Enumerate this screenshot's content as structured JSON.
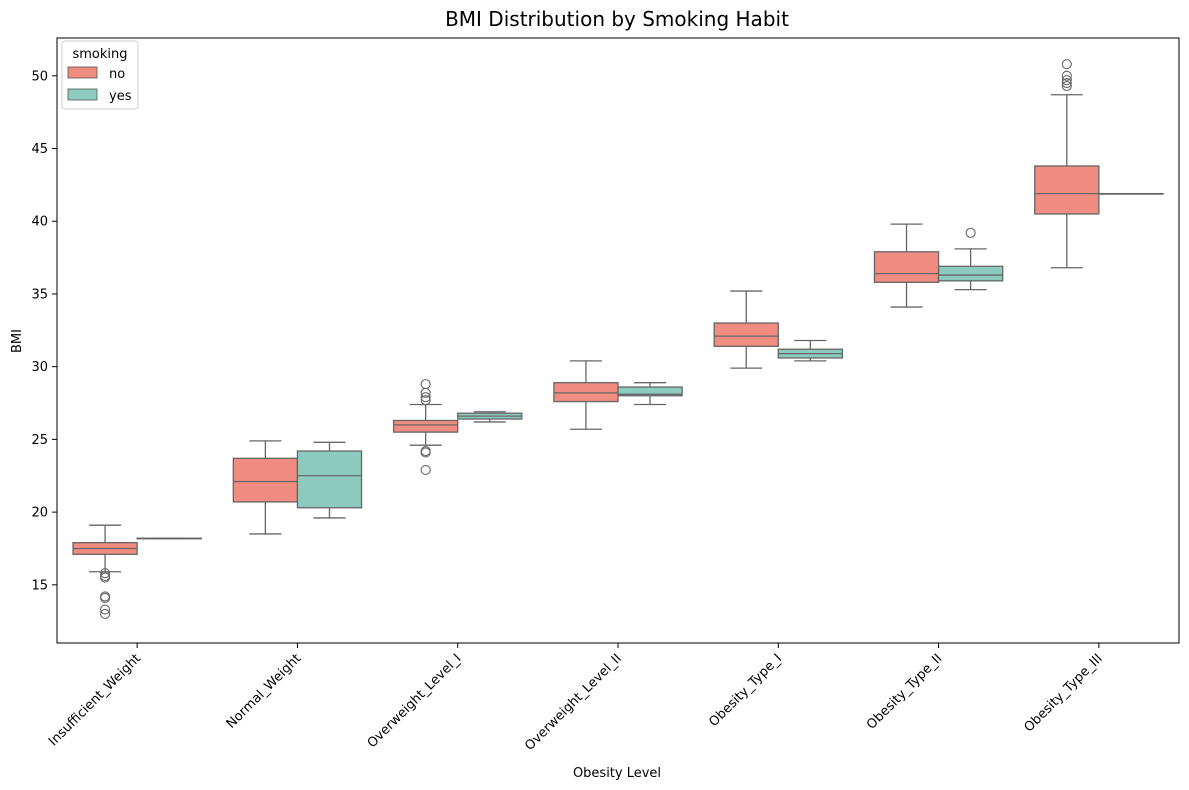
{
  "chart_data": {
    "type": "boxplot",
    "title": "BMI Distribution by Smoking Habit",
    "xlabel": "Obesity Level",
    "ylabel": "BMI",
    "ylim": [
      11,
      52.6
    ],
    "yticks": [
      15,
      20,
      25,
      30,
      35,
      40,
      45,
      50
    ],
    "categories": [
      "Insufficient_Weight",
      "Normal_Weight",
      "Overweight_Level_I",
      "Overweight_Level_II",
      "Obesity_Type_I",
      "Obesity_Type_II",
      "Obesity_Type_III"
    ],
    "legend": {
      "title": "smoking",
      "position": "top-left"
    },
    "series": [
      {
        "name": "no",
        "color": "#f08c80",
        "boxes": [
          {
            "whislo": 15.9,
            "q1": 17.1,
            "med": 17.5,
            "q3": 17.9,
            "whishi": 19.1,
            "fliers": [
              15.8,
              15.6,
              15.5,
              14.2,
              14.1,
              13.3,
              13.0
            ]
          },
          {
            "whislo": 18.5,
            "q1": 20.7,
            "med": 22.1,
            "q3": 23.7,
            "whishi": 24.9,
            "fliers": []
          },
          {
            "whislo": 24.6,
            "q1": 25.5,
            "med": 26.0,
            "q3": 26.3,
            "whishi": 27.4,
            "fliers": [
              27.7,
              27.9,
              28.2,
              28.8,
              24.2,
              24.1,
              22.9
            ]
          },
          {
            "whislo": 25.7,
            "q1": 27.6,
            "med": 28.2,
            "q3": 28.9,
            "whishi": 30.4,
            "fliers": []
          },
          {
            "whislo": 29.9,
            "q1": 31.4,
            "med": 32.1,
            "q3": 33.0,
            "whishi": 35.2,
            "fliers": []
          },
          {
            "whislo": 34.1,
            "q1": 35.8,
            "med": 36.4,
            "q3": 37.9,
            "whishi": 39.8,
            "fliers": []
          },
          {
            "whislo": 36.8,
            "q1": 40.5,
            "med": 41.9,
            "q3": 43.8,
            "whishi": 48.7,
            "fliers": [
              49.3,
              49.5,
              49.7,
              50.0,
              50.8
            ]
          }
        ]
      },
      {
        "name": "yes",
        "color": "#8dcbbe",
        "boxes": [
          {
            "whislo": 18.2,
            "q1": 18.2,
            "med": 18.2,
            "q3": 18.2,
            "whishi": 18.2,
            "fliers": []
          },
          {
            "whislo": 19.6,
            "q1": 20.3,
            "med": 22.5,
            "q3": 24.2,
            "whishi": 24.8,
            "fliers": []
          },
          {
            "whislo": 26.2,
            "q1": 26.4,
            "med": 26.6,
            "q3": 26.8,
            "whishi": 26.9,
            "fliers": []
          },
          {
            "whislo": 27.4,
            "q1": 28.0,
            "med": 28.1,
            "q3": 28.6,
            "whishi": 28.9,
            "fliers": []
          },
          {
            "whislo": 30.4,
            "q1": 30.6,
            "med": 30.9,
            "q3": 31.2,
            "whishi": 31.8,
            "fliers": []
          },
          {
            "whislo": 35.3,
            "q1": 35.9,
            "med": 36.3,
            "q3": 36.9,
            "whishi": 38.1,
            "fliers": [
              39.2
            ]
          },
          {
            "whislo": 41.9,
            "q1": 41.9,
            "med": 41.9,
            "q3": 41.9,
            "whishi": 41.9,
            "fliers": []
          }
        ]
      }
    ]
  }
}
